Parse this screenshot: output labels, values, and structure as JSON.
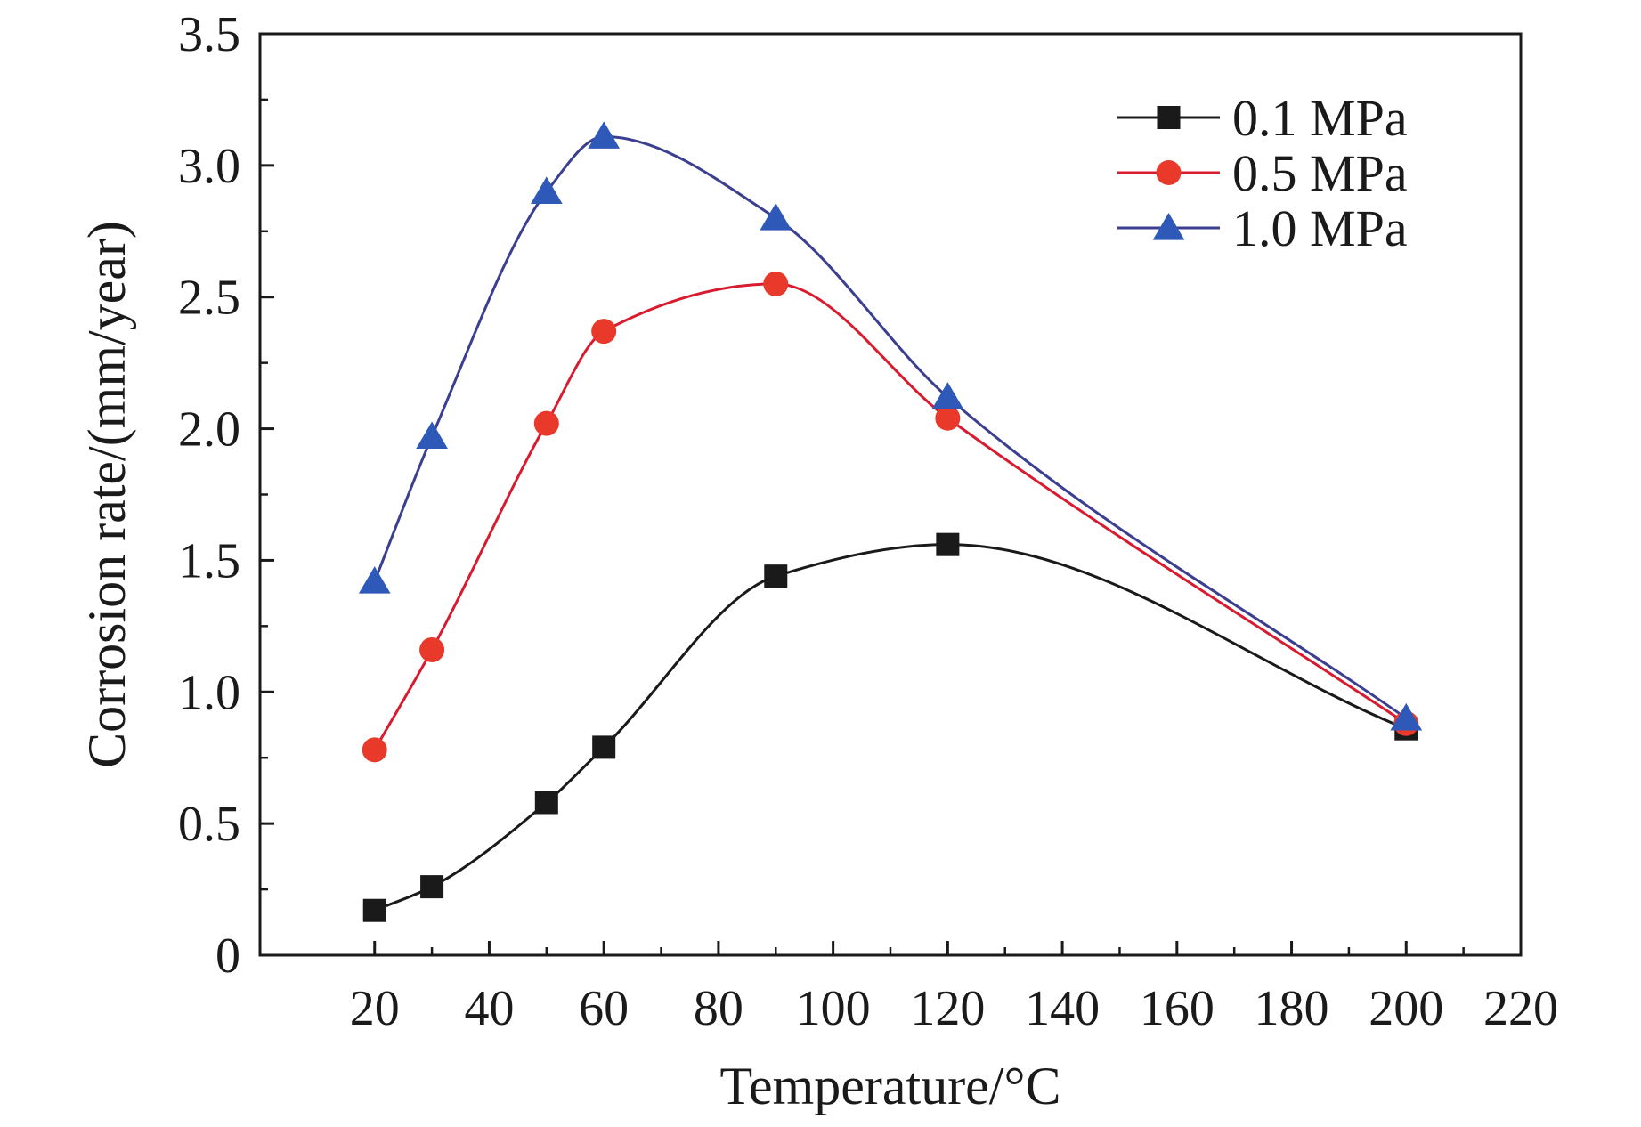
{
  "chart_data": {
    "type": "line",
    "title": "",
    "xlabel": "Temperature/°C",
    "ylabel": "Corrosion rate/(mm/year)",
    "xlim": [
      0,
      220
    ],
    "ylim": [
      0,
      3.5
    ],
    "x_ticks": [
      20,
      40,
      60,
      80,
      100,
      120,
      140,
      160,
      180,
      200,
      220
    ],
    "y_ticks": [
      0,
      0.5,
      1.0,
      1.5,
      2.0,
      2.5,
      3.0,
      3.5
    ],
    "y_tick_labels": [
      "0",
      "0.5",
      "1.0",
      "1.5",
      "2.0",
      "2.5",
      "3.0",
      "3.5"
    ],
    "grid": false,
    "legend_position": "top-right",
    "smooth": true,
    "series": [
      {
        "name": "0.1 MPa",
        "marker": "square",
        "color": "#1a1a1a",
        "marker_color": "#1a1a1a",
        "x": [
          20,
          30,
          50,
          60,
          90,
          120,
          200
        ],
        "y": [
          0.17,
          0.26,
          0.58,
          0.79,
          1.44,
          1.56,
          0.86
        ]
      },
      {
        "name": "0.5 MPa",
        "marker": "circle",
        "color": "#d81b2f",
        "marker_color": "#e8392b",
        "x": [
          20,
          30,
          50,
          60,
          90,
          120,
          200
        ],
        "y": [
          0.78,
          1.16,
          2.02,
          2.37,
          2.55,
          2.04,
          0.88
        ]
      },
      {
        "name": "1.0 MPa",
        "marker": "triangle",
        "color": "#3b3f8f",
        "marker_color": "#2f59b8",
        "x": [
          20,
          30,
          50,
          60,
          90,
          120,
          200
        ],
        "y": [
          1.42,
          1.97,
          2.9,
          3.11,
          2.8,
          2.12,
          0.9
        ]
      }
    ]
  }
}
